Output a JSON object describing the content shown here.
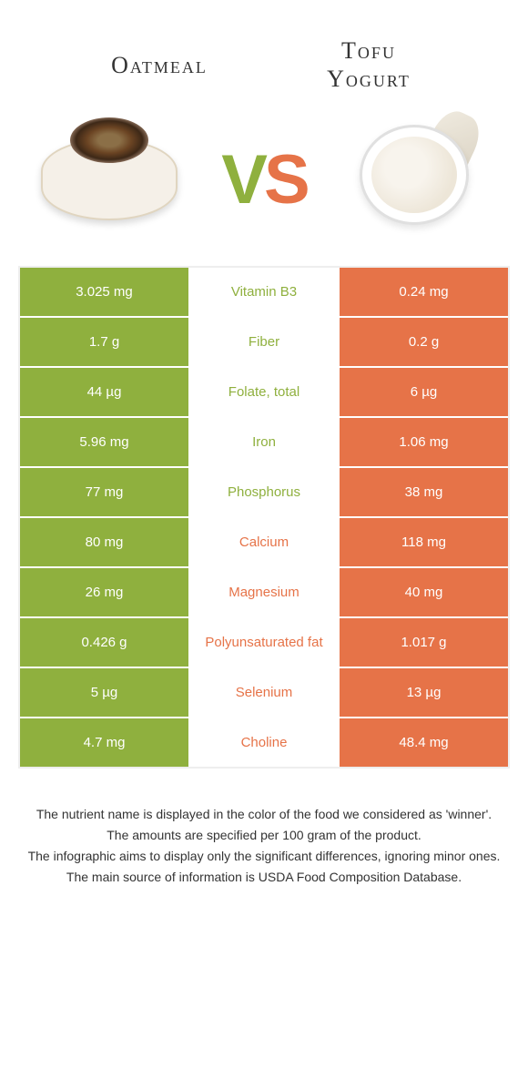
{
  "titles": {
    "left": "Oatmeal",
    "right": "Tofu\nYogurt"
  },
  "vs": {
    "v": "V",
    "s": "S"
  },
  "colors": {
    "green": "#8fb03e",
    "orange": "#e67348"
  },
  "rows": [
    {
      "left": "3.025 mg",
      "mid": "Vitamin B3",
      "right": "0.24 mg",
      "winner": "left"
    },
    {
      "left": "1.7 g",
      "mid": "Fiber",
      "right": "0.2 g",
      "winner": "left"
    },
    {
      "left": "44 µg",
      "mid": "Folate, total",
      "right": "6 µg",
      "winner": "left"
    },
    {
      "left": "5.96 mg",
      "mid": "Iron",
      "right": "1.06 mg",
      "winner": "left"
    },
    {
      "left": "77 mg",
      "mid": "Phosphorus",
      "right": "38 mg",
      "winner": "left"
    },
    {
      "left": "80 mg",
      "mid": "Calcium",
      "right": "118 mg",
      "winner": "right"
    },
    {
      "left": "26 mg",
      "mid": "Magnesium",
      "right": "40 mg",
      "winner": "right"
    },
    {
      "left": "0.426 g",
      "mid": "Polyunsaturated fat",
      "right": "1.017 g",
      "winner": "right"
    },
    {
      "left": "5 µg",
      "mid": "Selenium",
      "right": "13 µg",
      "winner": "right"
    },
    {
      "left": "4.7 mg",
      "mid": "Choline",
      "right": "48.4 mg",
      "winner": "right"
    }
  ],
  "footer": [
    "The nutrient name is displayed in the color of the food we considered as 'winner'.",
    "The amounts are specified per 100 gram of the product.",
    "The infographic aims to display only the significant differences, ignoring minor ones.",
    "The main source of information is USDA Food Composition Database."
  ]
}
